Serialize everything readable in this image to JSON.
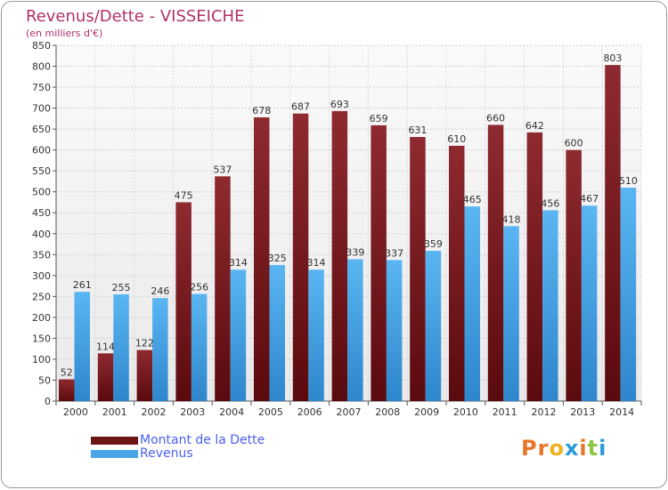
{
  "title": "Revenus/Dette - VISSEICHE",
  "subtitle": "(en milliers d'€)",
  "brand": "Proxiti",
  "colors": {
    "debt": "#7a1c22",
    "revenue": "#4aa6e8",
    "title": "#b0306a",
    "legend_text": "#4a5ff0"
  },
  "legend": [
    {
      "label": "Montant de la Dette",
      "color": "#6b1418"
    },
    {
      "label": "Revenus",
      "color": "#4aa6e8"
    }
  ],
  "chart_data": {
    "type": "bar",
    "title": "Revenus/Dette - VISSEICHE",
    "subtitle": "(en milliers d'€)",
    "xlabel": "",
    "ylabel": "",
    "ylim": [
      0,
      850
    ],
    "ytick_step": 50,
    "grid": true,
    "legend_position": "bottom-left",
    "categories": [
      "2000",
      "2001",
      "2002",
      "2003",
      "2004",
      "2005",
      "2006",
      "2007",
      "2008",
      "2009",
      "2010",
      "2011",
      "2012",
      "2013",
      "2014"
    ],
    "series": [
      {
        "name": "Montant de la Dette",
        "values": [
          52,
          114,
          122,
          475,
          537,
          678,
          687,
          693,
          659,
          631,
          610,
          660,
          642,
          600,
          803
        ]
      },
      {
        "name": "Revenus",
        "values": [
          261,
          255,
          246,
          256,
          314,
          325,
          314,
          339,
          337,
          359,
          465,
          418,
          456,
          467,
          510
        ]
      }
    ]
  }
}
